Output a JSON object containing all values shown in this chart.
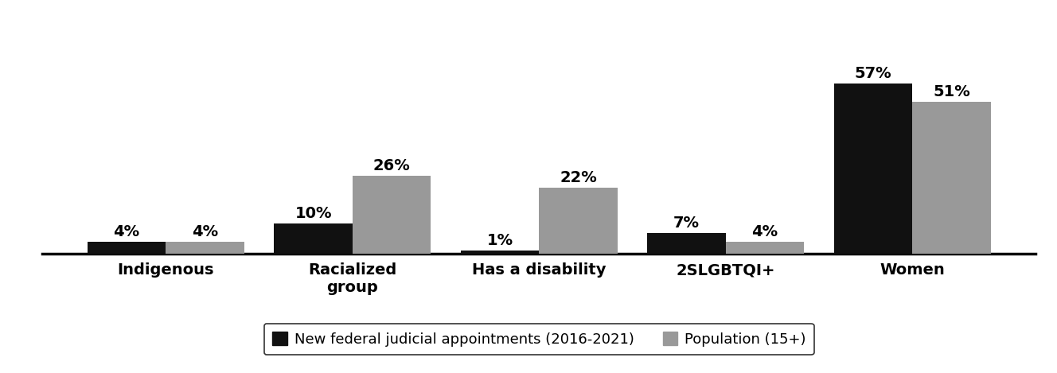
{
  "categories": [
    "Indigenous",
    "Racialized\ngroup",
    "Has a disability",
    "2SLGBTQI+",
    "Women"
  ],
  "appointments": [
    4,
    10,
    1,
    7,
    57
  ],
  "population": [
    4,
    26,
    22,
    4,
    51
  ],
  "bar_color_appointments": "#111111",
  "bar_color_population": "#999999",
  "bar_width": 0.42,
  "label_appointments": "New federal judicial appointments (2016-2021)",
  "label_population": "Population (15+)",
  "ylim": [
    0,
    70
  ],
  "value_fontsize": 14,
  "tick_fontsize": 14,
  "legend_fontsize": 13,
  "background_color": "#ffffff",
  "spine_color": "#000000"
}
